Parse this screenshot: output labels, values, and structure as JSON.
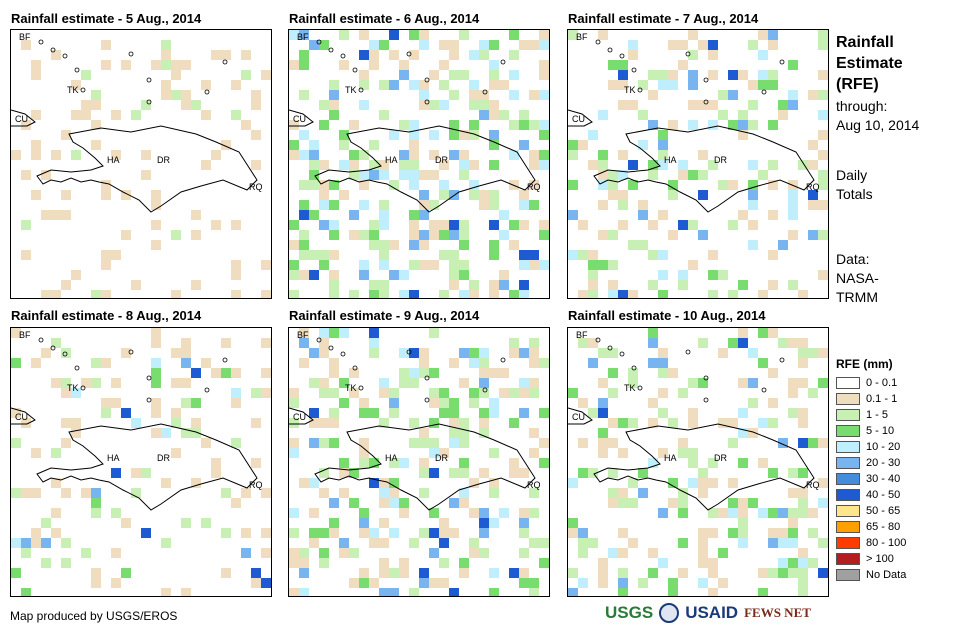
{
  "panels": [
    {
      "title": "Rainfall estimate - 5 Aug., 2014",
      "seed": 5,
      "wet": 0.0
    },
    {
      "title": "Rainfall estimate - 6 Aug., 2014",
      "seed": 6,
      "wet": 1.0
    },
    {
      "title": "Rainfall estimate - 7 Aug., 2014",
      "seed": 7,
      "wet": 0.6
    },
    {
      "title": "Rainfall estimate - 8 Aug., 2014",
      "seed": 8,
      "wet": 0.3
    },
    {
      "title": "Rainfall estimate - 9 Aug., 2014",
      "seed": 9,
      "wet": 0.9
    },
    {
      "title": "Rainfall estimate - 10 Aug., 2014",
      "seed": 10,
      "wet": 0.7
    }
  ],
  "country_labels": [
    "BF",
    "TK",
    "CU",
    "HA",
    "DR",
    "RQ"
  ],
  "side": {
    "title_lines": [
      "Rainfall",
      "Estimate",
      "(RFE)"
    ],
    "through_lines": [
      "through:",
      "Aug 10, 2014"
    ],
    "daily_lines": [
      "Daily",
      "Totals"
    ],
    "data_lines": [
      "Data:",
      "NASA-",
      "TRMM"
    ]
  },
  "legend": {
    "title": "RFE (mm)",
    "items": [
      {
        "label": "0 - 0.1",
        "color": "#ffffff"
      },
      {
        "label": "0.1 - 1",
        "color": "#f0dcbe"
      },
      {
        "label": "1 - 5",
        "color": "#c8f0b4"
      },
      {
        "label": "5 - 10",
        "color": "#78dc6e"
      },
      {
        "label": "10 - 20",
        "color": "#bfeefc"
      },
      {
        "label": "20 - 30",
        "color": "#78b4f0"
      },
      {
        "label": "30 - 40",
        "color": "#468cdc"
      },
      {
        "label": "40 - 50",
        "color": "#1e5ad2"
      },
      {
        "label": "50 - 65",
        "color": "#ffe68c"
      },
      {
        "label": "65 - 80",
        "color": "#ffa000"
      },
      {
        "label": "80 - 100",
        "color": "#ff3c00"
      },
      {
        "label": "> 100",
        "color": "#b41e1e"
      },
      {
        "label": "No Data",
        "color": "#a0a0a0"
      }
    ]
  },
  "footer": {
    "credit": "Map produced by USGS/EROS",
    "logos": [
      "USGS",
      "USAID",
      "FEWS NET"
    ]
  }
}
